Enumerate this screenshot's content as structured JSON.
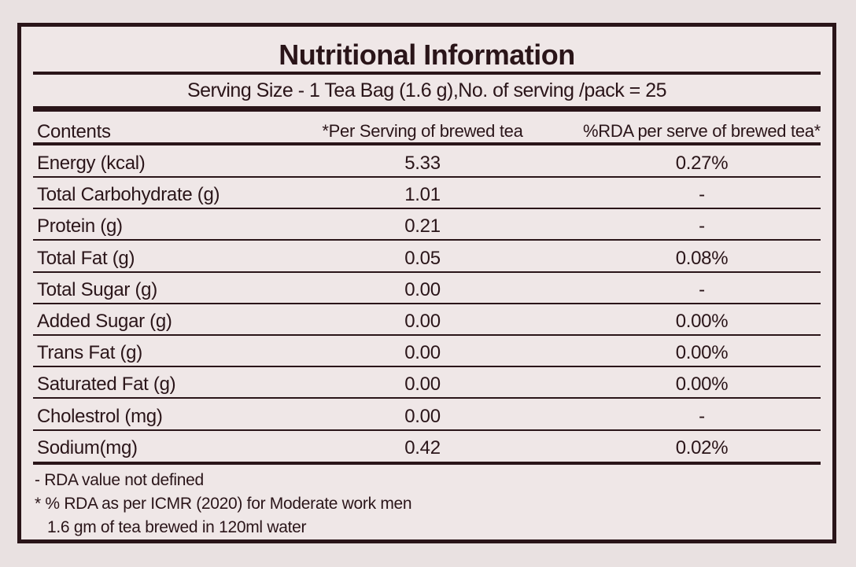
{
  "title": "Nutritional Information",
  "serving": "Serving Size - 1 Tea Bag (1.6 g),No. of serving /pack = 25",
  "headers": [
    "Contents",
    "*Per Serving of brewed tea",
    "%RDA per serve of brewed tea*"
  ],
  "rows": [
    {
      "name": "Energy (kcal)",
      "per_serving": "5.33",
      "rda": "0.27%"
    },
    {
      "name": "Total Carbohydrate (g)",
      "per_serving": "1.01",
      "rda": "-"
    },
    {
      "name": "Protein (g)",
      "per_serving": "0.21",
      "rda": "-"
    },
    {
      "name": "Total Fat (g)",
      "per_serving": "0.05",
      "rda": "0.08%"
    },
    {
      "name": "Total Sugar (g)",
      "per_serving": "0.00",
      "rda": "-"
    },
    {
      "name": "Added Sugar (g)",
      "per_serving": "0.00",
      "rda": "0.00%"
    },
    {
      "name": "Trans Fat (g)",
      "per_serving": "0.00",
      "rda": "0.00%"
    },
    {
      "name": "Saturated Fat (g)",
      "per_serving": "0.00",
      "rda": "0.00%"
    },
    {
      "name": "Cholestrol (mg)",
      "per_serving": "0.00",
      "rda": "-"
    },
    {
      "name": "Sodium(mg)",
      "per_serving": "0.42",
      "rda": "0.02%"
    }
  ],
  "footnotes": [
    "- RDA value not defined",
    "* % RDA as per ICMR (2020) for Moderate work men",
    "  1.6 gm of tea brewed in 120ml water"
  ]
}
